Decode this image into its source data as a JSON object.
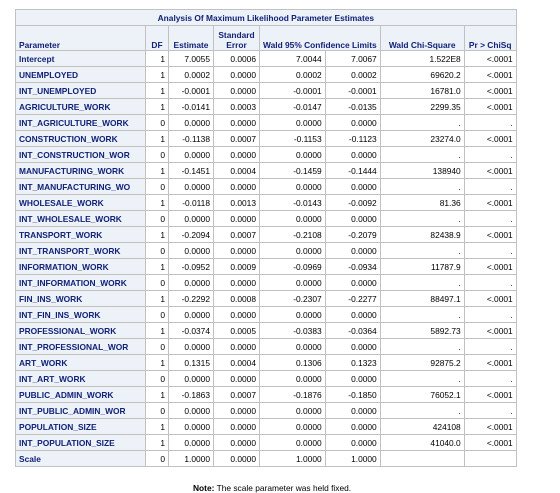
{
  "table": {
    "title": "Analysis Of Maximum Likelihood Parameter Estimates",
    "headers": {
      "parameter": "Parameter",
      "df": "DF",
      "estimate": "Estimate",
      "stderr_line1": "Standard",
      "stderr_line2": "Error",
      "ci": "Wald 95% Confidence Limits",
      "chisq": "Wald Chi-Square",
      "p": "Pr > ChiSq"
    },
    "rows": [
      {
        "parameter": "Intercept",
        "df": "1",
        "estimate": "7.0055",
        "stderr": "0.0006",
        "lower": "7.0044",
        "upper": "7.0067",
        "chisq": "1.522E8",
        "p": "<.0001"
      },
      {
        "parameter": "UNEMPLOYED",
        "df": "1",
        "estimate": "0.0002",
        "stderr": "0.0000",
        "lower": "0.0002",
        "upper": "0.0002",
        "chisq": "69620.2",
        "p": "<.0001"
      },
      {
        "parameter": "INT_UNEMPLOYED",
        "df": "1",
        "estimate": "-0.0001",
        "stderr": "0.0000",
        "lower": "-0.0001",
        "upper": "-0.0001",
        "chisq": "16781.0",
        "p": "<.0001"
      },
      {
        "parameter": "AGRICULTURE_WORK",
        "df": "1",
        "estimate": "-0.0141",
        "stderr": "0.0003",
        "lower": "-0.0147",
        "upper": "-0.0135",
        "chisq": "2299.35",
        "p": "<.0001"
      },
      {
        "parameter": "INT_AGRICULTURE_WORK",
        "df": "0",
        "estimate": "0.0000",
        "stderr": "0.0000",
        "lower": "0.0000",
        "upper": "0.0000",
        "chisq": ".",
        "p": "."
      },
      {
        "parameter": "CONSTRUCTION_WORK",
        "df": "1",
        "estimate": "-0.1138",
        "stderr": "0.0007",
        "lower": "-0.1153",
        "upper": "-0.1123",
        "chisq": "23274.0",
        "p": "<.0001"
      },
      {
        "parameter": "INT_CONSTRUCTION_WOR",
        "df": "0",
        "estimate": "0.0000",
        "stderr": "0.0000",
        "lower": "0.0000",
        "upper": "0.0000",
        "chisq": ".",
        "p": "."
      },
      {
        "parameter": "MANUFACTURING_WORK",
        "df": "1",
        "estimate": "-0.1451",
        "stderr": "0.0004",
        "lower": "-0.1459",
        "upper": "-0.1444",
        "chisq": "138940",
        "p": "<.0001"
      },
      {
        "parameter": "INT_MANUFACTURING_WO",
        "df": "0",
        "estimate": "0.0000",
        "stderr": "0.0000",
        "lower": "0.0000",
        "upper": "0.0000",
        "chisq": ".",
        "p": "."
      },
      {
        "parameter": "WHOLESALE_WORK",
        "df": "1",
        "estimate": "-0.0118",
        "stderr": "0.0013",
        "lower": "-0.0143",
        "upper": "-0.0092",
        "chisq": "81.36",
        "p": "<.0001"
      },
      {
        "parameter": "INT_WHOLESALE_WORK",
        "df": "0",
        "estimate": "0.0000",
        "stderr": "0.0000",
        "lower": "0.0000",
        "upper": "0.0000",
        "chisq": ".",
        "p": "."
      },
      {
        "parameter": "TRANSPORT_WORK",
        "df": "1",
        "estimate": "-0.2094",
        "stderr": "0.0007",
        "lower": "-0.2108",
        "upper": "-0.2079",
        "chisq": "82438.9",
        "p": "<.0001"
      },
      {
        "parameter": "INT_TRANSPORT_WORK",
        "df": "0",
        "estimate": "0.0000",
        "stderr": "0.0000",
        "lower": "0.0000",
        "upper": "0.0000",
        "chisq": ".",
        "p": "."
      },
      {
        "parameter": "INFORMATION_WORK",
        "df": "1",
        "estimate": "-0.0952",
        "stderr": "0.0009",
        "lower": "-0.0969",
        "upper": "-0.0934",
        "chisq": "11787.9",
        "p": "<.0001"
      },
      {
        "parameter": "INT_INFORMATION_WORK",
        "df": "0",
        "estimate": "0.0000",
        "stderr": "0.0000",
        "lower": "0.0000",
        "upper": "0.0000",
        "chisq": ".",
        "p": "."
      },
      {
        "parameter": "FIN_INS_WORK",
        "df": "1",
        "estimate": "-0.2292",
        "stderr": "0.0008",
        "lower": "-0.2307",
        "upper": "-0.2277",
        "chisq": "88497.1",
        "p": "<.0001"
      },
      {
        "parameter": "INT_FIN_INS_WORK",
        "df": "0",
        "estimate": "0.0000",
        "stderr": "0.0000",
        "lower": "0.0000",
        "upper": "0.0000",
        "chisq": ".",
        "p": "."
      },
      {
        "parameter": "PROFESSIONAL_WORK",
        "df": "1",
        "estimate": "-0.0374",
        "stderr": "0.0005",
        "lower": "-0.0383",
        "upper": "-0.0364",
        "chisq": "5892.73",
        "p": "<.0001"
      },
      {
        "parameter": "INT_PROFESSIONAL_WOR",
        "df": "0",
        "estimate": "0.0000",
        "stderr": "0.0000",
        "lower": "0.0000",
        "upper": "0.0000",
        "chisq": ".",
        "p": "."
      },
      {
        "parameter": "ART_WORK",
        "df": "1",
        "estimate": "0.1315",
        "stderr": "0.0004",
        "lower": "0.1306",
        "upper": "0.1323",
        "chisq": "92875.2",
        "p": "<.0001"
      },
      {
        "parameter": "INT_ART_WORK",
        "df": "0",
        "estimate": "0.0000",
        "stderr": "0.0000",
        "lower": "0.0000",
        "upper": "0.0000",
        "chisq": ".",
        "p": "."
      },
      {
        "parameter": "PUBLIC_ADMIN_WORK",
        "df": "1",
        "estimate": "-0.1863",
        "stderr": "0.0007",
        "lower": "-0.1876",
        "upper": "-0.1850",
        "chisq": "76052.1",
        "p": "<.0001"
      },
      {
        "parameter": "INT_PUBLIC_ADMIN_WOR",
        "df": "0",
        "estimate": "0.0000",
        "stderr": "0.0000",
        "lower": "0.0000",
        "upper": "0.0000",
        "chisq": ".",
        "p": "."
      },
      {
        "parameter": "POPULATION_SIZE",
        "df": "1",
        "estimate": "0.0000",
        "stderr": "0.0000",
        "lower": "0.0000",
        "upper": "0.0000",
        "chisq": "424108",
        "p": "<.0001"
      },
      {
        "parameter": "INT_POPULATION_SIZE",
        "df": "1",
        "estimate": "0.0000",
        "stderr": "0.0000",
        "lower": "0.0000",
        "upper": "0.0000",
        "chisq": "41040.0",
        "p": "<.0001"
      },
      {
        "parameter": "Scale",
        "df": "0",
        "estimate": "1.0000",
        "stderr": "0.0000",
        "lower": "1.0000",
        "upper": "1.0000",
        "chisq": "",
        "p": ""
      }
    ]
  },
  "note": {
    "label": "Note:",
    "text": "The scale parameter was held fixed."
  },
  "colors": {
    "header_bg": "#edf2f9",
    "header_text": "#112277",
    "border": "#c1c1c1"
  }
}
